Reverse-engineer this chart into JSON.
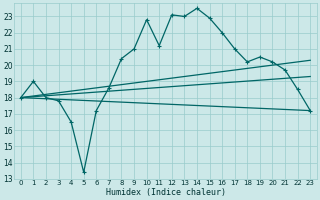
{
  "xlabel": "Humidex (Indice chaleur)",
  "bg_color": "#cce8e8",
  "grid_color": "#99cccc",
  "line_color": "#006666",
  "xlim": [
    -0.5,
    23.5
  ],
  "ylim": [
    13,
    23.8
  ],
  "yticks": [
    13,
    14,
    15,
    16,
    17,
    18,
    19,
    20,
    21,
    22,
    23
  ],
  "xticks": [
    0,
    1,
    2,
    3,
    4,
    5,
    6,
    7,
    8,
    9,
    10,
    11,
    12,
    13,
    14,
    15,
    16,
    17,
    18,
    19,
    20,
    21,
    22,
    23
  ],
  "series_main": {
    "x": [
      0,
      1,
      2,
      3,
      4,
      5,
      6,
      7,
      8,
      9,
      10,
      11,
      12,
      13,
      14,
      15,
      16,
      17,
      18,
      19,
      20,
      21,
      22,
      23
    ],
    "y": [
      18.0,
      19.0,
      18.0,
      17.8,
      16.5,
      13.4,
      17.2,
      18.6,
      20.4,
      21.0,
      22.8,
      21.2,
      23.1,
      23.0,
      23.5,
      22.9,
      22.0,
      21.0,
      20.2,
      20.5,
      20.2,
      19.7,
      18.5,
      17.2
    ]
  },
  "series2": {
    "x": [
      0,
      23
    ],
    "y": [
      18.0,
      20.3
    ]
  },
  "series3": {
    "x": [
      0,
      23
    ],
    "y": [
      18.0,
      19.3
    ]
  },
  "series4": {
    "x": [
      0,
      23
    ],
    "y": [
      18.0,
      17.2
    ]
  }
}
